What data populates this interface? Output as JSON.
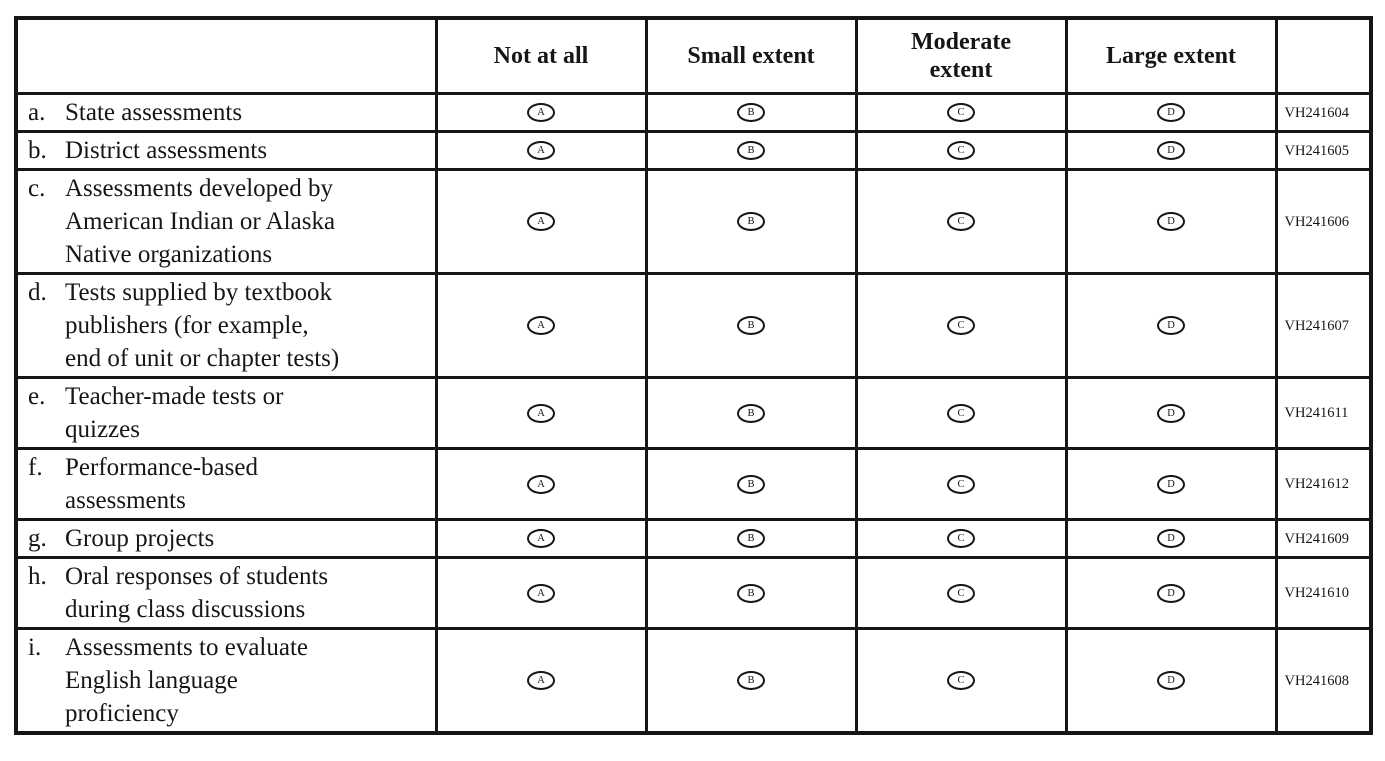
{
  "table": {
    "columns": [
      "",
      "Not at all",
      "Small extent",
      "Moderate\nextent",
      "Large extent",
      ""
    ],
    "options": [
      "A",
      "B",
      "C",
      "D"
    ],
    "rows": [
      {
        "letter": "a.",
        "label": "State assessments",
        "code": "VH241604"
      },
      {
        "letter": "b.",
        "label": "District assessments",
        "code": "VH241605"
      },
      {
        "letter": "c.",
        "label": "Assessments developed by\nAmerican Indian or Alaska\nNative organizations",
        "code": "VH241606"
      },
      {
        "letter": "d.",
        "label": "Tests supplied by textbook\npublishers (for example,\nend of unit or chapter tests)",
        "code": "VH241607"
      },
      {
        "letter": "e.",
        "label": "Teacher-made tests or\nquizzes",
        "code": "VH241611"
      },
      {
        "letter": "f.",
        "label": "Performance-based\nassessments",
        "code": "VH241612"
      },
      {
        "letter": "g.",
        "label": "Group projects",
        "code": "VH241609"
      },
      {
        "letter": "h.",
        "label": "Oral responses of students\nduring class discussions",
        "code": "VH241610"
      },
      {
        "letter": "i.",
        "label": "Assessments to evaluate\nEnglish language\nproficiency",
        "code": "VH241608"
      }
    ]
  }
}
